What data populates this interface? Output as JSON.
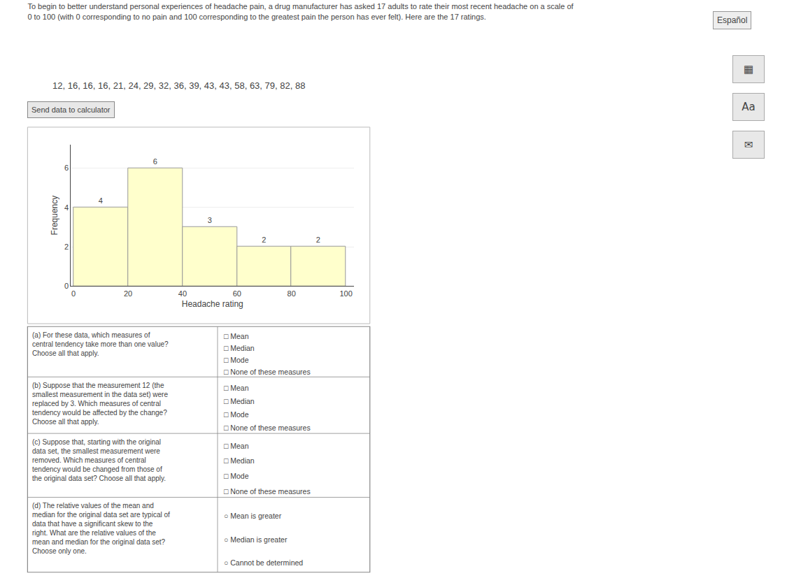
{
  "chart_data": {
    "type": "histogram",
    "title": "To begin to better understand personal experiences of headache pain, a drug manufacturer has asked 17 adults to rate their most recent headache on a scale of",
    "subtitle": "0 to 100 (with 0 corresponding to no pain and 100 corresponding to the greatest pain the person has ever felt). Here are the 17 ratings.",
    "x_label": "Headache rating",
    "y_label": "Frequency",
    "bins": [
      0,
      20,
      40,
      60,
      80,
      100
    ],
    "values": [
      4,
      6,
      3,
      2,
      2
    ],
    "color": "#ffffcc",
    "data_labels": true,
    "grid": true,
    "xlim": [
      -1,
      103
    ],
    "xticks": [
      0,
      20,
      40,
      60,
      80,
      100
    ],
    "ylim": [
      0,
      7.2
    ],
    "yticks": [
      0,
      2,
      4,
      6
    ],
    "annotations": [
      "Español",
      "12, 16, 16, 16, 21, 24, 29, 32, 36, 39, 43, 43, 58, 63, 79, 82, 88",
      "Send data to calculator",
      "▦",
      "Aa",
      "✉"
    ],
    "questions": [
      {
        "text": "(a) For these data, which measures of\ncentral tendency take more than one value?\nChoose all that apply.",
        "options": [
          "□ Mean",
          "□ Median",
          "□ Mode",
          "□ None of these measures"
        ]
      },
      {
        "text": "(b) Suppose that the measurement 12 (the\nsmallest measurement in the data set) were\nreplaced by 3. Which measures of central\ntendency would be affected by the change?\nChoose all that apply.",
        "options": [
          "□ Mean",
          "□ Median",
          "□ Mode",
          "□ None of these measures"
        ]
      },
      {
        "text": "(c) Suppose that, starting with the original\ndata set, the smallest measurement were\nremoved. Which measures of central\ntendency would be changed from those of\nthe original data set? Choose all that apply.",
        "options": [
          "□ Mean",
          "□ Median",
          "□ Mode",
          "□ None of these measures"
        ]
      },
      {
        "text": "(d) The relative values of the mean and\nmedian for the original data set are typical of\ndata that have a significant skew to the\nright. What are the relative values of the\nmean and median for the original data set?\nChoose only one.",
        "options": [
          "○ Mean is greater",
          "○ Median is greater",
          "○ Cannot be determined"
        ]
      }
    ]
  }
}
